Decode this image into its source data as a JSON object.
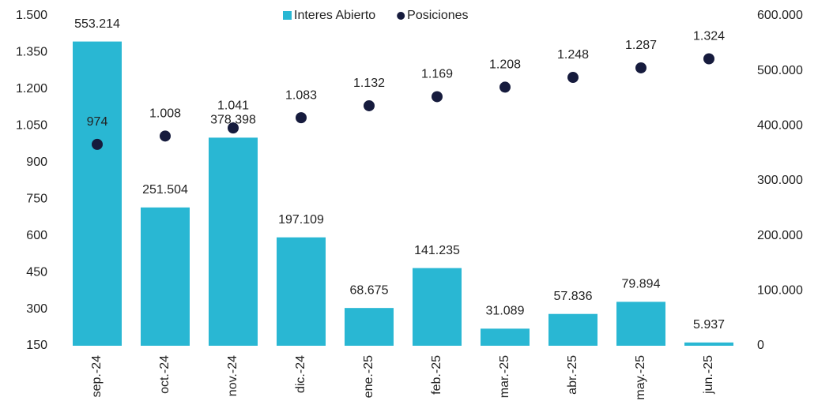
{
  "chart_data": {
    "type": "bar",
    "categories": [
      "sep.-24",
      "oct.-24",
      "nov.-24",
      "dic.-24",
      "ene.-25",
      "feb.-25",
      "mar.-25",
      "abr.-25",
      "may.-25",
      "jun.-25"
    ],
    "series": [
      {
        "name": "Interes Abierto",
        "type": "bar",
        "axis": "y2",
        "color": "#29b7d3",
        "values": [
          553214,
          251504,
          378398,
          197109,
          68675,
          141235,
          31089,
          57836,
          79894,
          5937
        ],
        "value_labels": [
          "553.214",
          "251.504",
          "378.398",
          "197.109",
          "68.675",
          "141.235",
          "31.089",
          "57.836",
          "79.894",
          "5.937"
        ]
      },
      {
        "name": "Posiciones",
        "type": "scatter",
        "color": "#161b3d",
        "values": [
          974,
          1008,
          1041,
          1083,
          1132,
          1169,
          1208,
          1248,
          1287,
          1324
        ],
        "value_labels": [
          "974",
          "1.008",
          "1.041",
          "1.083",
          "1.132",
          "1.169",
          "1.208",
          "1.248",
          "1.287",
          "1.324"
        ]
      }
    ],
    "ylim": [
      150,
      1500
    ],
    "yticks": [
      150,
      300,
      450,
      600,
      750,
      900,
      {
        "value": 1050,
        "label": "1.050"
      },
      {
        "value": 1200,
        "label": "1.200"
      },
      {
        "value": 1350,
        "label": "1.350"
      },
      {
        "value": 1500,
        "label": "1.500"
      }
    ],
    "y2lim": [
      0,
      600000
    ],
    "y2ticks": [
      0,
      {
        "value": 100000,
        "label": "100.000"
      },
      {
        "value": 200000,
        "label": "200.000"
      },
      {
        "value": 300000,
        "label": "300.000"
      },
      {
        "value": 400000,
        "label": "400.000"
      },
      {
        "value": 500000,
        "label": "500.000"
      },
      {
        "value": 600000,
        "label": "600.000"
      }
    ],
    "legend": "top"
  }
}
